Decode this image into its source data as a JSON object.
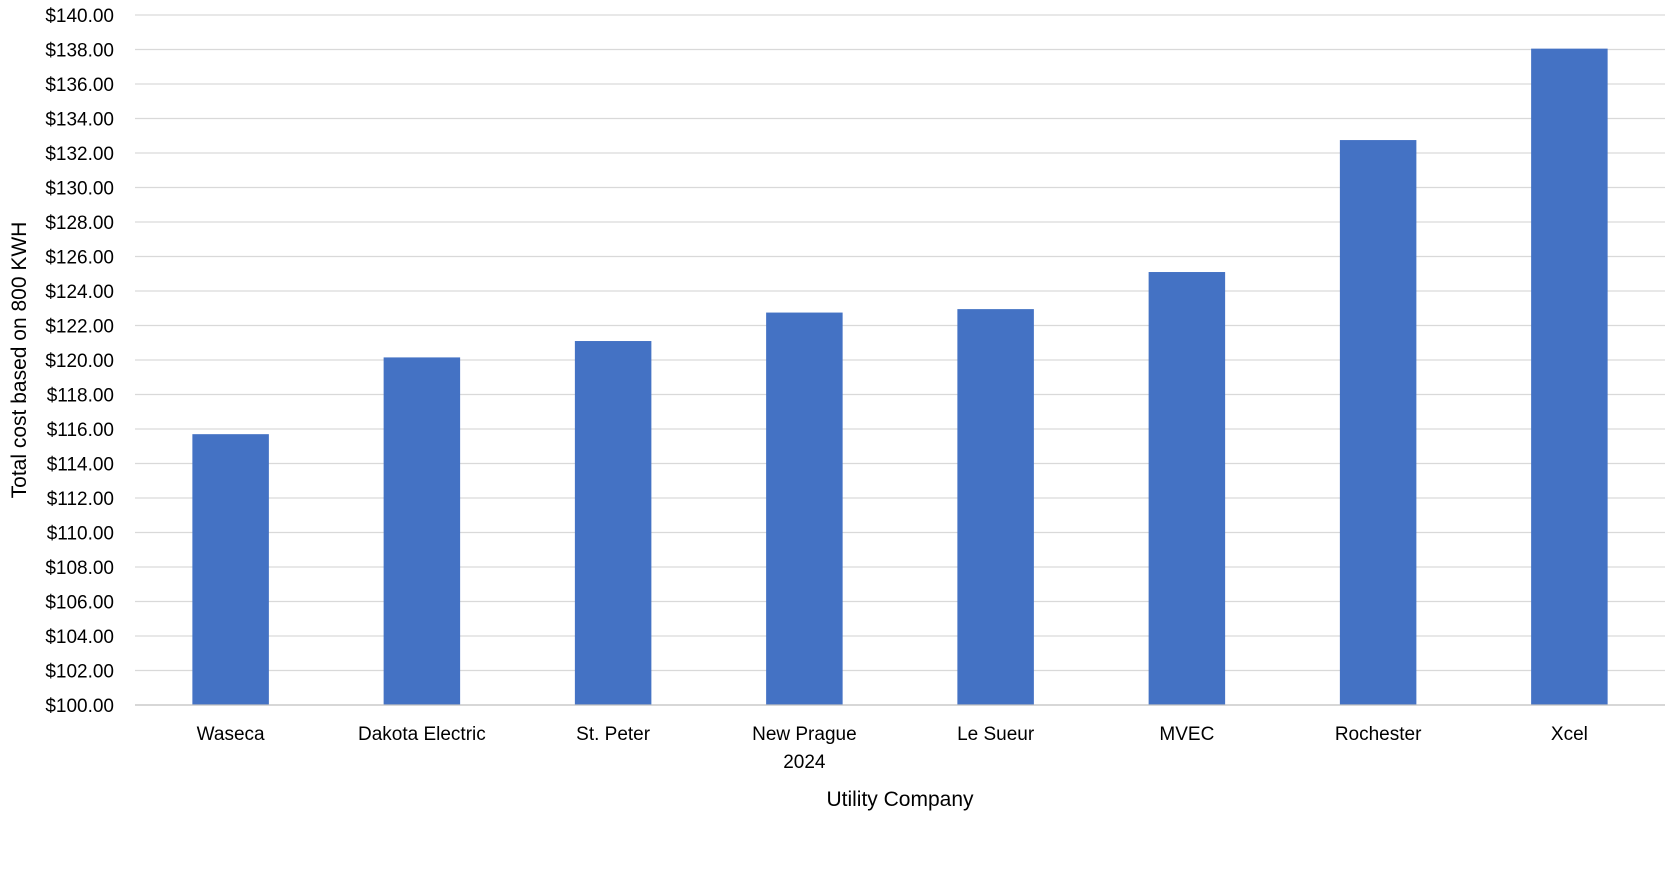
{
  "chart_data": {
    "type": "bar",
    "title": "",
    "xlabel": "Utility Company",
    "ylabel": "Total cost based on 800 KWH",
    "categories": [
      "Waseca",
      "Dakota Electric",
      "St. Peter",
      "New Prague 2024",
      "Le Sueur",
      "MVEC",
      "Rochester",
      "Xcel"
    ],
    "category_lines": [
      [
        "Waseca"
      ],
      [
        "Dakota Electric"
      ],
      [
        "St. Peter"
      ],
      [
        "New Prague",
        "2024"
      ],
      [
        "Le Sueur"
      ],
      [
        "MVEC"
      ],
      [
        "Rochester"
      ],
      [
        "Xcel"
      ]
    ],
    "values": [
      115.7,
      120.15,
      121.1,
      122.75,
      122.95,
      125.1,
      132.75,
      138.05
    ],
    "ylim": [
      100,
      140
    ],
    "ytick_step": 2,
    "ytick_labels": [
      "$100.00",
      "$102.00",
      "$104.00",
      "$106.00",
      "$108.00",
      "$110.00",
      "$112.00",
      "$114.00",
      "$116.00",
      "$118.00",
      "$120.00",
      "$122.00",
      "$124.00",
      "$126.00",
      "$128.00",
      "$130.00",
      "$132.00",
      "$134.00",
      "$136.00",
      "$138.00",
      "$140.00"
    ],
    "grid": true,
    "legend": "none",
    "bar_color": "#4472c4"
  }
}
